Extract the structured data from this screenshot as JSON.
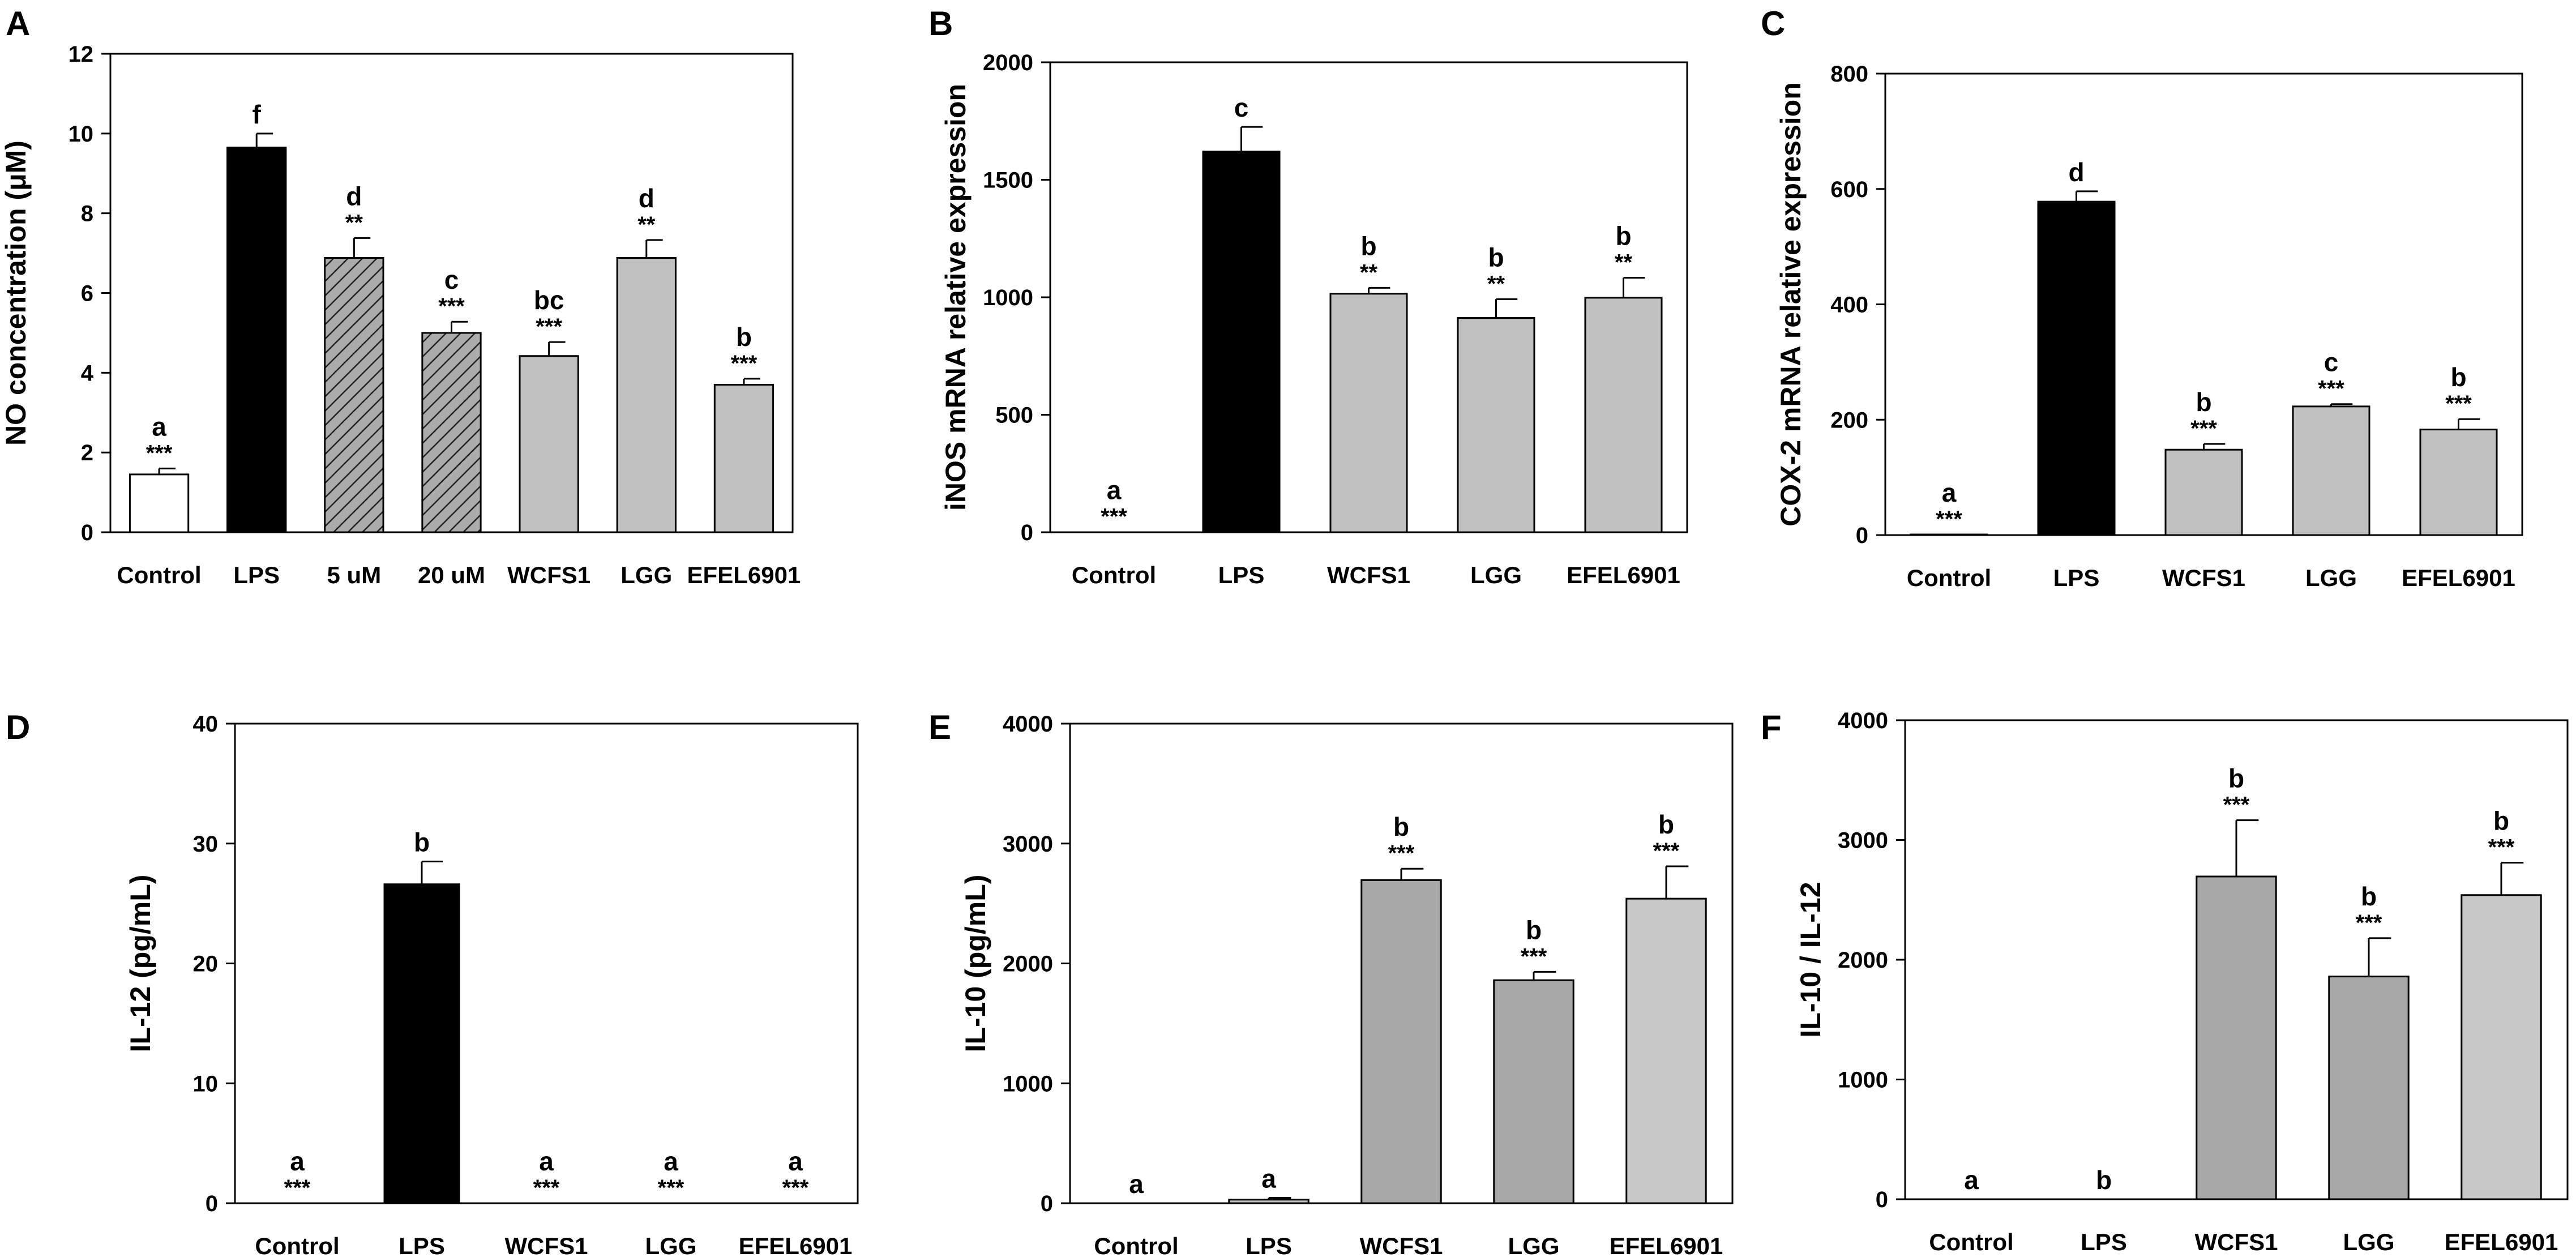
{
  "chart_data": [
    {
      "id": "A",
      "panel_label": "A",
      "type": "bar",
      "ylabel": "NO concentration (μM)",
      "ylim": [
        0,
        12
      ],
      "yticks": [
        0,
        2,
        4,
        6,
        8,
        10,
        12
      ],
      "tick_labels": [
        "0",
        "2",
        "4",
        "6",
        "8",
        "10",
        "12"
      ],
      "categories": [
        "Control",
        "LPS",
        "5 uM",
        "20 uM",
        "WCFS1",
        "LGG",
        "EFEL6901"
      ],
      "values": [
        1.45,
        9.65,
        6.88,
        5.0,
        4.42,
        6.88,
        3.7
      ],
      "errors": [
        0.15,
        0.35,
        0.5,
        0.28,
        0.35,
        0.45,
        0.15
      ],
      "letters": [
        "a",
        "f",
        "d",
        "c",
        "bc",
        "d",
        "b"
      ],
      "stars": [
        "***",
        "",
        "**",
        "***",
        "***",
        "**",
        "***"
      ],
      "fills": [
        "#ffffff",
        "#000000",
        "hatch",
        "hatch",
        "#c0c0c0",
        "#c0c0c0",
        "#c0c0c0"
      ]
    },
    {
      "id": "B",
      "panel_label": "B",
      "type": "bar",
      "ylabel": "iNOS mRNA relative expression",
      "ylim": [
        0,
        2000
      ],
      "yticks": [
        0,
        500,
        1000,
        1500,
        2000
      ],
      "tick_labels": [
        "0",
        "500",
        "1000",
        "1500",
        "2000"
      ],
      "categories": [
        "Control",
        "LPS",
        "WCFS1",
        "LGG",
        "EFEL6901"
      ],
      "values": [
        1,
        1620,
        1015,
        912,
        998
      ],
      "errors": [
        0,
        105,
        25,
        80,
        85
      ],
      "letters": [
        "a",
        "c",
        "b",
        "b",
        "b"
      ],
      "stars": [
        "***",
        "",
        "**",
        "**",
        "**"
      ],
      "fills": [
        "#ffffff",
        "#000000",
        "#c0c0c0",
        "#c0c0c0",
        "#c0c0c0"
      ]
    },
    {
      "id": "C",
      "panel_label": "C",
      "type": "bar",
      "ylabel": "COX-2 mRNA relative expression",
      "ylim": [
        0,
        800
      ],
      "yticks": [
        0,
        200,
        400,
        600,
        800
      ],
      "tick_labels": [
        "0",
        "200",
        "400",
        "600",
        "800"
      ],
      "categories": [
        "Control",
        "LPS",
        "WCFS1",
        "LGG",
        "EFEL6901"
      ],
      "values": [
        1,
        578,
        148,
        223,
        183
      ],
      "errors": [
        0,
        18,
        10,
        4,
        18
      ],
      "letters": [
        "a",
        "d",
        "b",
        "c",
        "b"
      ],
      "stars": [
        "***",
        "",
        "***",
        "***",
        "***"
      ],
      "fills": [
        "#ffffff",
        "#000000",
        "#c0c0c0",
        "#c0c0c0",
        "#c0c0c0"
      ]
    },
    {
      "id": "D",
      "panel_label": "D",
      "type": "bar",
      "ylabel": "IL-12 (pg/mL)",
      "ylim": [
        0,
        40
      ],
      "yticks": [
        0,
        10,
        20,
        30,
        40
      ],
      "tick_labels": [
        "0",
        "10",
        "20",
        "30",
        "40"
      ],
      "categories": [
        "Control",
        "LPS",
        "WCFS1",
        "LGG",
        "EFEL6901"
      ],
      "values": [
        0,
        26.6,
        0,
        0,
        0
      ],
      "errors": [
        0,
        1.9,
        0,
        0,
        0
      ],
      "letters": [
        "a",
        "b",
        "a",
        "a",
        "a"
      ],
      "stars": [
        "***",
        "",
        "***",
        "***",
        "***"
      ],
      "fills": [
        "#ffffff",
        "#000000",
        "#c0c0c0",
        "#c0c0c0",
        "#c0c0c0"
      ]
    },
    {
      "id": "E",
      "panel_label": "E",
      "type": "bar",
      "ylabel": "IL-10 (pg/mL)",
      "ylim": [
        0,
        4000
      ],
      "yticks": [
        0,
        1000,
        2000,
        3000,
        4000
      ],
      "tick_labels": [
        "0",
        "1000",
        "2000",
        "3000",
        "4000"
      ],
      "categories": [
        "Control",
        "LPS",
        "WCFS1",
        "LGG",
        "EFEL6901"
      ],
      "values": [
        0,
        30,
        2695,
        1860,
        2540
      ],
      "errors": [
        0,
        15,
        95,
        70,
        270
      ],
      "letters": [
        "a",
        "a",
        "b",
        "b",
        "b"
      ],
      "stars": [
        "",
        "",
        "***",
        "***",
        "***"
      ],
      "fills": [
        "#ffffff",
        "#c0c0c0",
        "#a8a8a8",
        "#a8a8a8",
        "#c8c8c8"
      ]
    },
    {
      "id": "F",
      "panel_label": "F",
      "type": "bar",
      "ylabel": "IL-10 / IL-12",
      "ylim": [
        0,
        4000
      ],
      "yticks": [
        0,
        1000,
        2000,
        3000,
        4000
      ],
      "tick_labels": [
        "0",
        "1000",
        "2000",
        "3000",
        "4000"
      ],
      "categories": [
        "Control",
        "LPS",
        "WCFS1",
        "LGG",
        "EFEL6901"
      ],
      "values": [
        0,
        1,
        2695,
        1860,
        2540
      ],
      "errors": [
        0,
        0,
        470,
        320,
        270
      ],
      "letters": [
        "a",
        "b",
        "b",
        "b",
        "b"
      ],
      "stars": [
        "",
        "",
        "***",
        "***",
        "***"
      ],
      "fills": [
        "#ffffff",
        "#c0c0c0",
        "#a8a8a8",
        "#a8a8a8",
        "#c8c8c8"
      ]
    }
  ]
}
